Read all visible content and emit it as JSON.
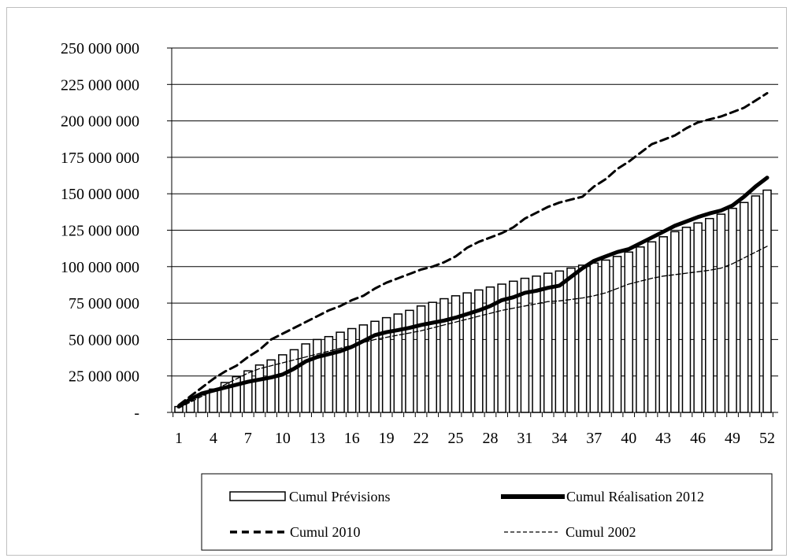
{
  "chart_data": {
    "type": "bar",
    "title": "",
    "xlabel": "",
    "ylabel": "",
    "ylim": [
      0,
      250000000
    ],
    "xlim": [
      1,
      52
    ],
    "grid": true,
    "legend_position": "bottom",
    "y_ticks": [
      {
        "value": 0,
        "label": "-"
      },
      {
        "value": 25000000,
        "label": "25 000 000"
      },
      {
        "value": 50000000,
        "label": "50 000 000"
      },
      {
        "value": 75000000,
        "label": "75 000 000"
      },
      {
        "value": 100000000,
        "label": "100 000 000"
      },
      {
        "value": 125000000,
        "label": "125 000 000"
      },
      {
        "value": 150000000,
        "label": "150 000 000"
      },
      {
        "value": 175000000,
        "label": "175 000 000"
      },
      {
        "value": 200000000,
        "label": "200 000 000"
      },
      {
        "value": 225000000,
        "label": "225 000 000"
      },
      {
        "value": 250000000,
        "label": "250 000 000"
      }
    ],
    "x_ticks": [
      1,
      4,
      7,
      10,
      13,
      16,
      19,
      22,
      25,
      28,
      31,
      34,
      37,
      40,
      43,
      46,
      49,
      52
    ],
    "x": [
      1,
      2,
      3,
      4,
      5,
      6,
      7,
      8,
      9,
      10,
      11,
      12,
      13,
      14,
      15,
      16,
      17,
      18,
      19,
      20,
      21,
      22,
      23,
      24,
      25,
      26,
      27,
      28,
      29,
      30,
      31,
      32,
      33,
      34,
      35,
      36,
      37,
      38,
      39,
      40,
      41,
      42,
      43,
      44,
      45,
      46,
      47,
      48,
      49,
      50,
      51,
      52
    ],
    "series": [
      {
        "name": "Cumul Prévisions",
        "kind": "bar",
        "color": "#ffffff",
        "values": [
          4000000,
          8000000,
          12000000,
          16000000,
          20500000,
          24500000,
          28500000,
          32500000,
          36000000,
          39500000,
          43000000,
          47000000,
          50000000,
          52000000,
          55000000,
          57500000,
          60000000,
          62500000,
          65000000,
          67500000,
          70000000,
          73000000,
          75500000,
          78000000,
          80000000,
          82000000,
          84000000,
          86000000,
          88000000,
          90000000,
          92000000,
          93500000,
          95500000,
          97000000,
          99000000,
          101000000,
          102500000,
          104500000,
          107000000,
          110000000,
          113500000,
          117000000,
          120500000,
          124000000,
          127000000,
          130000000,
          133000000,
          136000000,
          140000000,
          144000000,
          148500000,
          152500000
        ]
      },
      {
        "name": "Cumul Réalisation 2012",
        "kind": "line",
        "style": "thick",
        "color": "#000000",
        "values": [
          4000000,
          9000000,
          13000000,
          15000000,
          17000000,
          19000000,
          21000000,
          22500000,
          24000000,
          26000000,
          30000000,
          35000000,
          38000000,
          40000000,
          42000000,
          45000000,
          49000000,
          53000000,
          55000000,
          56500000,
          58000000,
          60000000,
          61500000,
          63000000,
          65000000,
          67500000,
          70000000,
          73000000,
          77000000,
          79000000,
          82000000,
          83500000,
          85500000,
          87000000,
          93000000,
          99000000,
          104000000,
          107000000,
          110000000,
          112000000,
          116000000,
          120000000,
          124000000,
          128000000,
          131000000,
          134000000,
          136500000,
          138500000,
          142000000,
          148000000,
          155000000,
          161000000
        ]
      },
      {
        "name": "Cumul 2010",
        "kind": "line",
        "style": "dashed",
        "color": "#000000",
        "values": [
          5000000,
          11000000,
          17000000,
          23000000,
          28000000,
          32000000,
          38000000,
          43000000,
          50000000,
          54000000,
          58000000,
          62000000,
          66000000,
          70000000,
          73000000,
          77000000,
          80000000,
          85000000,
          89000000,
          92000000,
          95000000,
          98000000,
          100000000,
          103000000,
          107000000,
          113000000,
          117000000,
          120000000,
          123000000,
          127000000,
          133000000,
          137000000,
          141000000,
          144000000,
          146000000,
          148000000,
          155000000,
          160000000,
          167000000,
          172000000,
          178000000,
          184000000,
          187000000,
          190000000,
          195000000,
          199000000,
          201000000,
          203000000,
          206000000,
          209000000,
          214000000,
          219000000
        ]
      },
      {
        "name": "Cumul 2002",
        "kind": "line",
        "style": "thin-dashed",
        "color": "#000000",
        "values": [
          3000000,
          7000000,
          11000000,
          15000000,
          19000000,
          23000000,
          27000000,
          30000000,
          32000000,
          34000000,
          36000000,
          38000000,
          40000000,
          42000000,
          44000000,
          46000000,
          48000000,
          50000000,
          51500000,
          53000000,
          54500000,
          56000000,
          58000000,
          60000000,
          62000000,
          64000000,
          66000000,
          68000000,
          70000000,
          71500000,
          73000000,
          74500000,
          76000000,
          76500000,
          77500000,
          78500000,
          80000000,
          82000000,
          85000000,
          88000000,
          90000000,
          92000000,
          93500000,
          94500000,
          95500000,
          96500000,
          97500000,
          99000000,
          102000000,
          106000000,
          110000000,
          114000000
        ]
      }
    ]
  }
}
